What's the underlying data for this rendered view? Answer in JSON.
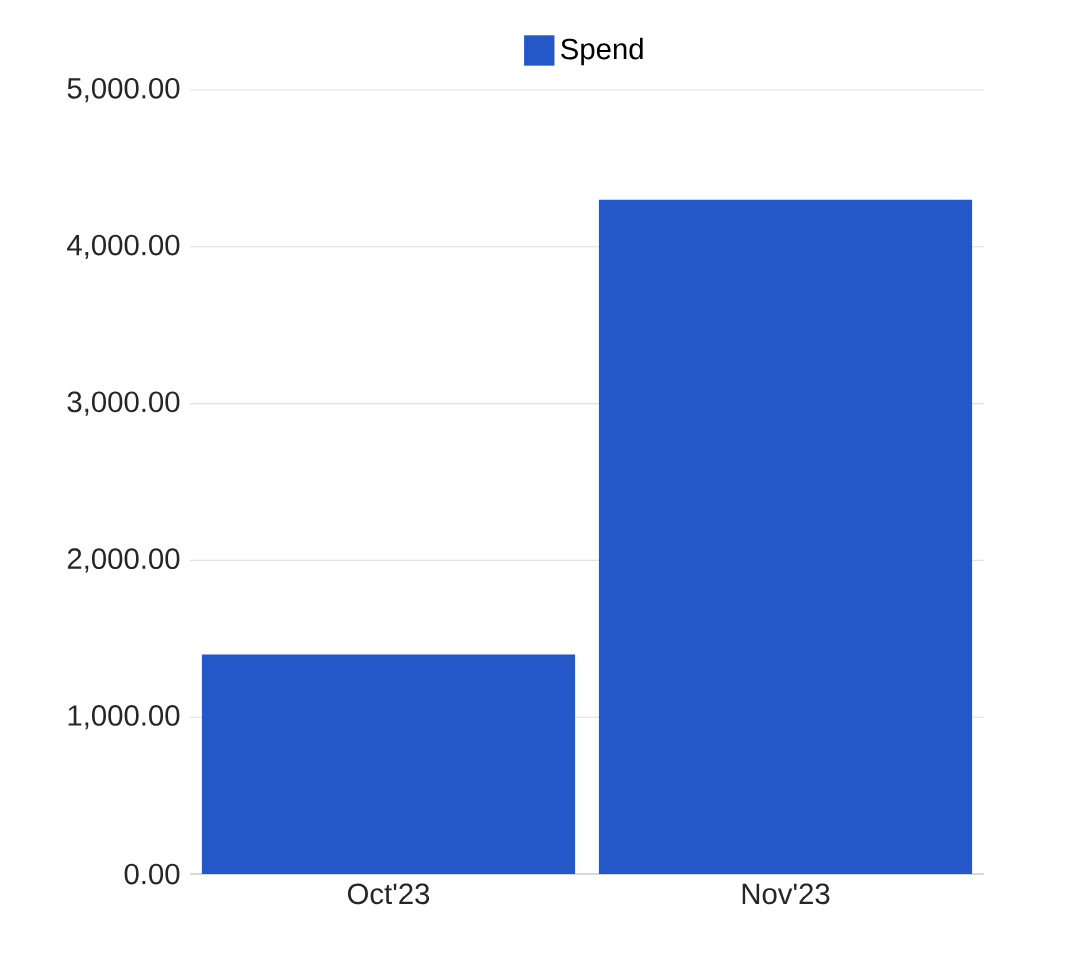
{
  "chart_data": {
    "type": "bar",
    "categories": [
      "Oct'23",
      "Nov'23"
    ],
    "series": [
      {
        "name": "Spend",
        "color": "#2457c8",
        "values": [
          1400,
          4300
        ]
      }
    ],
    "ylim": [
      0,
      5000
    ],
    "yticks": [
      {
        "value": 0,
        "label": "0.00"
      },
      {
        "value": 1000,
        "label": "1,000.00"
      },
      {
        "value": 2000,
        "label": "2,000.00"
      },
      {
        "value": 3000,
        "label": "3,000.00"
      },
      {
        "value": 4000,
        "label": "4,000.00"
      },
      {
        "value": 5000,
        "label": "5,000.00"
      }
    ],
    "grid": "y",
    "legend": "top"
  }
}
